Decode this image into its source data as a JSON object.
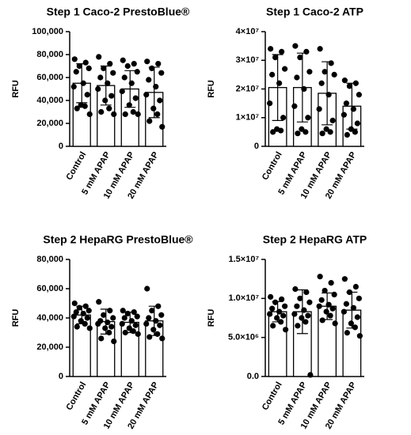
{
  "chart_data": [
    {
      "type": "bar",
      "title": "Step 1 Caco-2 PrestoBlue®",
      "y_label": "RFU",
      "categories": [
        "Control",
        "5 mM APAP",
        "10 mM APAP",
        "20 mM APAP"
      ],
      "values": [
        55000,
        53000,
        50000,
        47000
      ],
      "errors": [
        17000,
        17000,
        16000,
        22000
      ],
      "points": [
        [
          76000,
          73000,
          70000,
          68000,
          65000,
          55000,
          52000,
          45000,
          36000,
          35000,
          33000,
          28000
        ],
        [
          78000,
          72000,
          68000,
          64000,
          60000,
          55000,
          50000,
          44000,
          40000,
          33000,
          30000,
          28000
        ],
        [
          75000,
          72000,
          70000,
          65000,
          60000,
          55000,
          48000,
          42000,
          36000,
          30000,
          28000,
          28000
        ],
        [
          74000,
          72000,
          68000,
          64000,
          58000,
          52000,
          45000,
          40000,
          33000,
          28000,
          22000,
          17000
        ]
      ],
      "ylim": [
        0,
        100000
      ],
      "yticks": [
        0,
        {
          "value": 20000,
          "label": "20,000"
        },
        {
          "value": 40000,
          "label": "40,000"
        },
        {
          "value": 60000,
          "label": "60,000"
        },
        {
          "value": 80000,
          "label": "80,000"
        },
        {
          "value": 100000,
          "label": "100,000"
        }
      ]
    },
    {
      "type": "bar",
      "title": "Step 1 Caco-2 ATP",
      "y_label": "RFU",
      "categories": [
        "Control",
        "5 mM APAP",
        "10 mM APAP",
        "20 mM APAP"
      ],
      "values": [
        20500000,
        20500000,
        18500000,
        14000000
      ],
      "errors": [
        11500000,
        12000000,
        11000000,
        8000000
      ],
      "points": [
        [
          34000000,
          33000000,
          31000000,
          27000000,
          25000000,
          22000000,
          15000000,
          10000000,
          6000000,
          5500000,
          5000000
        ],
        [
          35000000,
          33000000,
          31000000,
          26000000,
          24000000,
          20000000,
          14000000,
          10000000,
          6000000,
          5000000,
          4500000
        ],
        [
          34000000,
          29000000,
          26000000,
          25000000,
          22000000,
          18000000,
          13000000,
          9000000,
          6000000,
          5000000,
          4500000
        ],
        [
          23000000,
          22000000,
          21000000,
          18000000,
          15000000,
          13000000,
          11000000,
          8000000,
          6000000,
          5000000,
          4000000
        ]
      ],
      "ylim": [
        0,
        40000000
      ],
      "yticks": [
        0,
        {
          "value": 10000000,
          "label": "1×10⁷"
        },
        {
          "value": 20000000,
          "label": "2×10⁷"
        },
        {
          "value": 30000000,
          "label": "3×10⁷"
        },
        {
          "value": 40000000,
          "label": "4×10⁷"
        }
      ]
    },
    {
      "type": "bar",
      "title": "Step 2 HepaRG PrestoBlue®",
      "y_label": "RFU",
      "categories": [
        "Control",
        "5 mM APAP",
        "10 mM APAP",
        "20 mM APAP"
      ],
      "values": [
        42000,
        37500,
        37000,
        38000
      ],
      "errors": [
        6000,
        8500,
        7000,
        10000
      ],
      "points": [
        [
          50000,
          48000,
          47000,
          45000,
          44000,
          43000,
          41000,
          40000,
          38000,
          36000,
          34000,
          33000
        ],
        [
          51000,
          45000,
          42000,
          40000,
          38000,
          37000,
          36000,
          34000,
          33000,
          30000,
          26000,
          24000
        ],
        [
          45000,
          44000,
          43000,
          41000,
          40000,
          38000,
          36000,
          35000,
          33000,
          31000,
          30000,
          29000
        ],
        [
          60000,
          48000,
          45000,
          42000,
          40000,
          38000,
          36000,
          35000,
          32000,
          29000,
          27000,
          26000
        ]
      ],
      "ylim": [
        0,
        80000
      ],
      "yticks": [
        0,
        {
          "value": 20000,
          "label": "20,000"
        },
        {
          "value": 40000,
          "label": "40,000"
        },
        {
          "value": 60000,
          "label": "60,000"
        },
        {
          "value": 80000,
          "label": "80,000"
        }
      ]
    },
    {
      "type": "bar",
      "title": "Step 2 HepaRG ATP",
      "y_label": "RFU",
      "categories": [
        "Control",
        "5 mM APAP",
        "10 mM APAP",
        "20 mM APAP"
      ],
      "values": [
        8300000,
        8300000,
        9000000,
        8500000
      ],
      "errors": [
        1300000,
        2800000,
        1700000,
        2300000
      ],
      "points": [
        [
          10200000,
          9900000,
          9500000,
          9000000,
          8700000,
          8300000,
          8000000,
          7800000,
          7500000,
          7000000,
          6500000,
          6000000
        ],
        [
          11200000,
          10800000,
          10000000,
          9500000,
          9000000,
          8500000,
          8000000,
          7800000,
          7500000,
          7000000,
          6500000,
          200000
        ],
        [
          12800000,
          12000000,
          11000000,
          10500000,
          9800000,
          9200000,
          9000000,
          8700000,
          8300000,
          7800000,
          7200000,
          6800000
        ],
        [
          12500000,
          11500000,
          10800000,
          10000000,
          9300000,
          8800000,
          8300000,
          7600000,
          6800000,
          6300000,
          5600000,
          5200000
        ]
      ],
      "ylim": [
        0,
        15000000
      ],
      "yticks": [
        {
          "value": 0,
          "label": "0.0"
        },
        {
          "value": 5000000,
          "label": "5.0×10⁶"
        },
        {
          "value": 10000000,
          "label": "1.0×10⁷"
        },
        {
          "value": 15000000,
          "label": "1.5×10⁷"
        }
      ]
    }
  ]
}
